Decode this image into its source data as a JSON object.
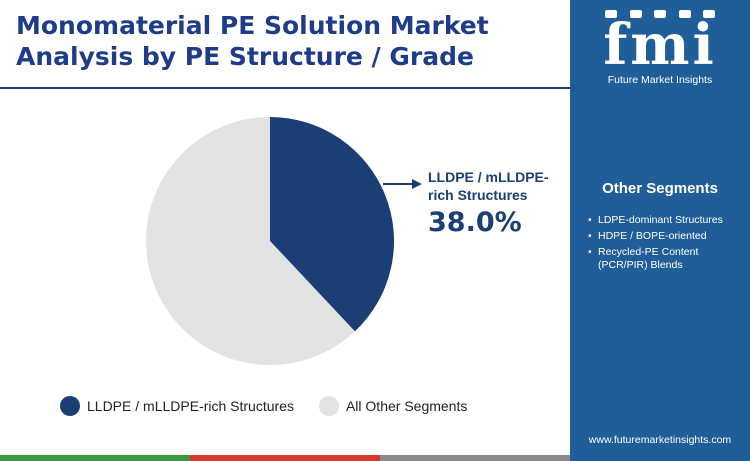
{
  "title": "Monomaterial PE Solution Market Analysis by PE Structure / Grade",
  "chart_data": {
    "type": "pie",
    "slices": [
      {
        "label": "LLDPE / mLLDPE-rich Structures",
        "value": 38.0,
        "color": "#1b3f74"
      },
      {
        "label": "All Other Segments",
        "value": 62.0,
        "color": "#e3e3e3"
      }
    ],
    "callout": {
      "label": "LLDPE / mLLDPE-rich Structures",
      "value_text": "38.0%"
    },
    "legend": {
      "position": "bottom",
      "items": [
        {
          "label": "LLDPE / mLLDPE-rich Structures",
          "color": "#1b3f74"
        },
        {
          "label": "All Other Segments",
          "color": "#e3e3e3"
        }
      ]
    }
  },
  "sidebar": {
    "logo_text": "fmi",
    "logo_subtitle": "Future Market Insights",
    "segments_title": "Other Segments",
    "segments": [
      "LDPE-dominant Structures",
      "HDPE / BOPE-oriented",
      "Recycled-PE Content (PCR/PIR) Blends"
    ],
    "website": "www.futuremarketinsights.com"
  },
  "colors": {
    "title": "#1f3c88",
    "sidebar_bg": "#1f5e99",
    "primary_slice": "#1b3f74",
    "other_slice": "#e3e3e3",
    "bottom_bar": [
      "#3a9a3f",
      "#d63a2f",
      "#8a8a8a",
      "#1f5e99"
    ]
  }
}
